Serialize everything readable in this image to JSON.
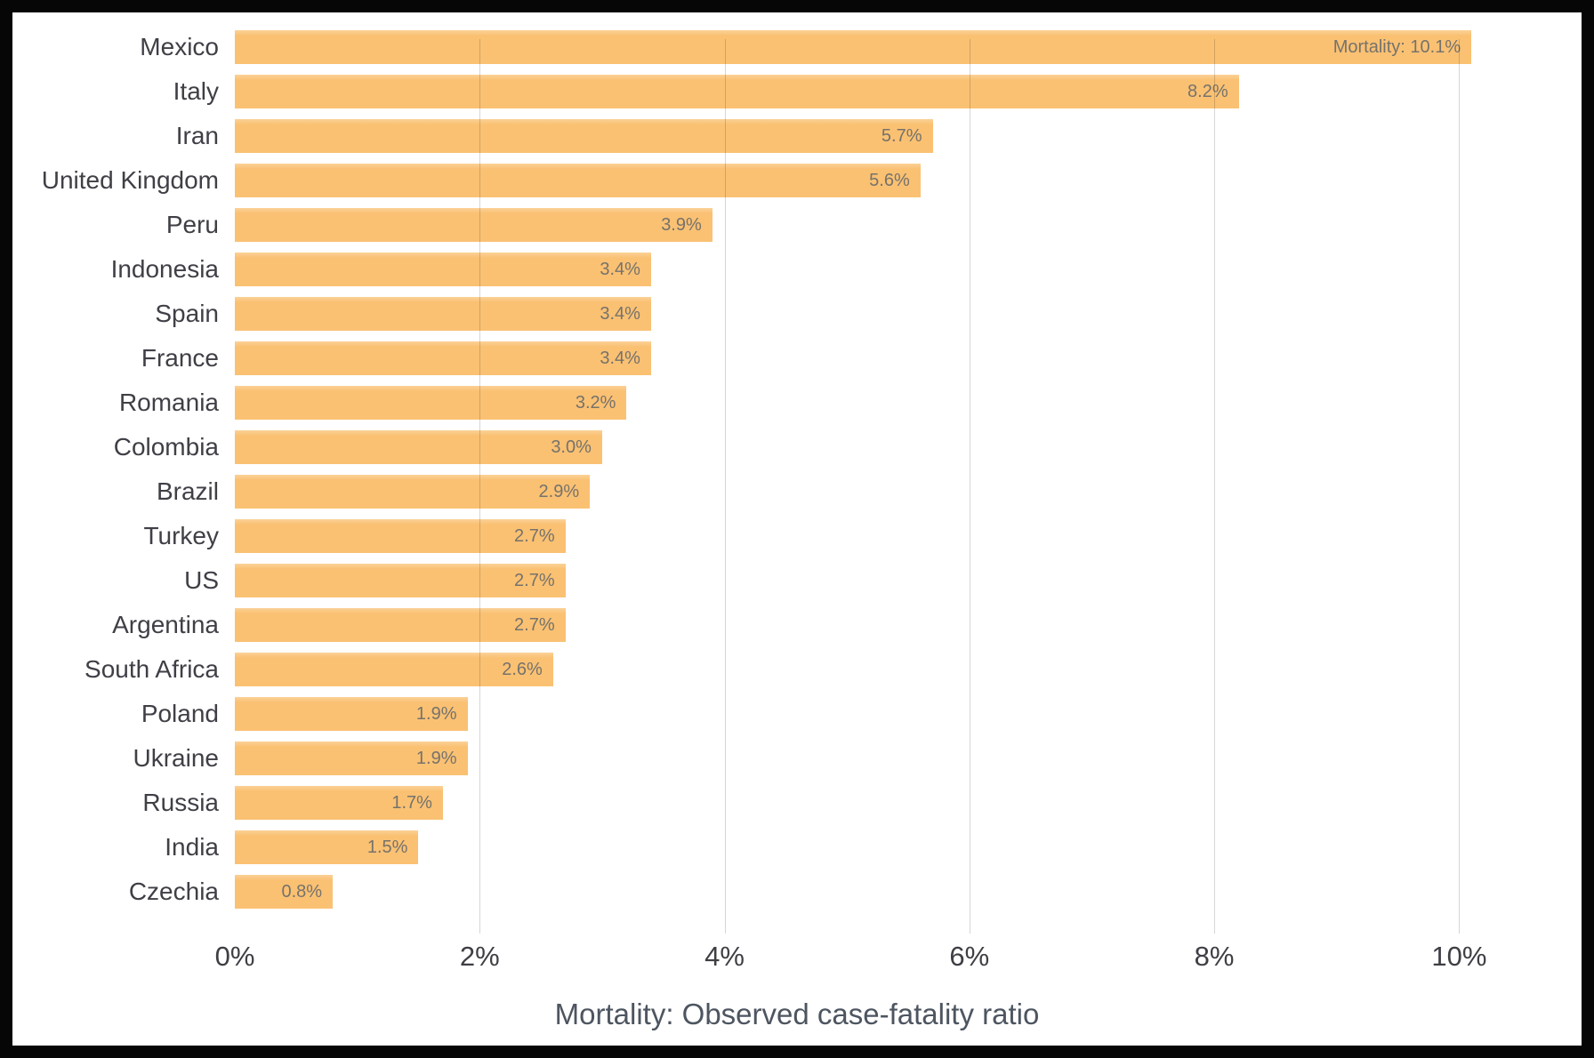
{
  "chart_data": {
    "type": "bar",
    "orientation": "horizontal",
    "title": "",
    "xlabel": "Mortality: Observed case-fatality ratio",
    "ylabel": "",
    "categories": [
      "Mexico",
      "Italy",
      "Iran",
      "United Kingdom",
      "Peru",
      "Indonesia",
      "Spain",
      "France",
      "Romania",
      "Colombia",
      "Brazil",
      "Turkey",
      "US",
      "Argentina",
      "South Africa",
      "Poland",
      "Ukraine",
      "Russia",
      "India",
      "Czechia"
    ],
    "values": [
      10.1,
      8.2,
      5.7,
      5.6,
      3.9,
      3.4,
      3.4,
      3.4,
      3.2,
      3.0,
      2.9,
      2.7,
      2.7,
      2.7,
      2.6,
      1.9,
      1.9,
      1.7,
      1.5,
      0.8
    ],
    "value_labels": [
      "Mortality: 10.1%",
      "8.2%",
      "5.7%",
      "5.6%",
      "3.9%",
      "3.4%",
      "3.4%",
      "3.4%",
      "3.2%",
      "3.0%",
      "2.9%",
      "2.7%",
      "2.7%",
      "2.7%",
      "2.6%",
      "1.9%",
      "1.9%",
      "1.7%",
      "1.5%",
      "0.8%"
    ],
    "x_ticks": [
      "0%",
      "2%",
      "4%",
      "6%",
      "8%",
      "10%"
    ],
    "x_tick_values": [
      0,
      2,
      4,
      6,
      8,
      10
    ],
    "xlim": [
      0,
      11
    ],
    "grid": "vertical gridlines at 2% intervals, drawn over bars",
    "legend": "none"
  },
  "colors": {
    "bar_fill": "#FAC173",
    "bar_fill_top": "#FBD197",
    "gridline": "rgba(0,0,0,0.16)",
    "category_label": "#3F3F46",
    "value_label": "#76726B",
    "tick_label": "#3E3E44",
    "axis_title": "#4D5560",
    "frame_border": "#060606",
    "background": "#FFFFFF"
  }
}
